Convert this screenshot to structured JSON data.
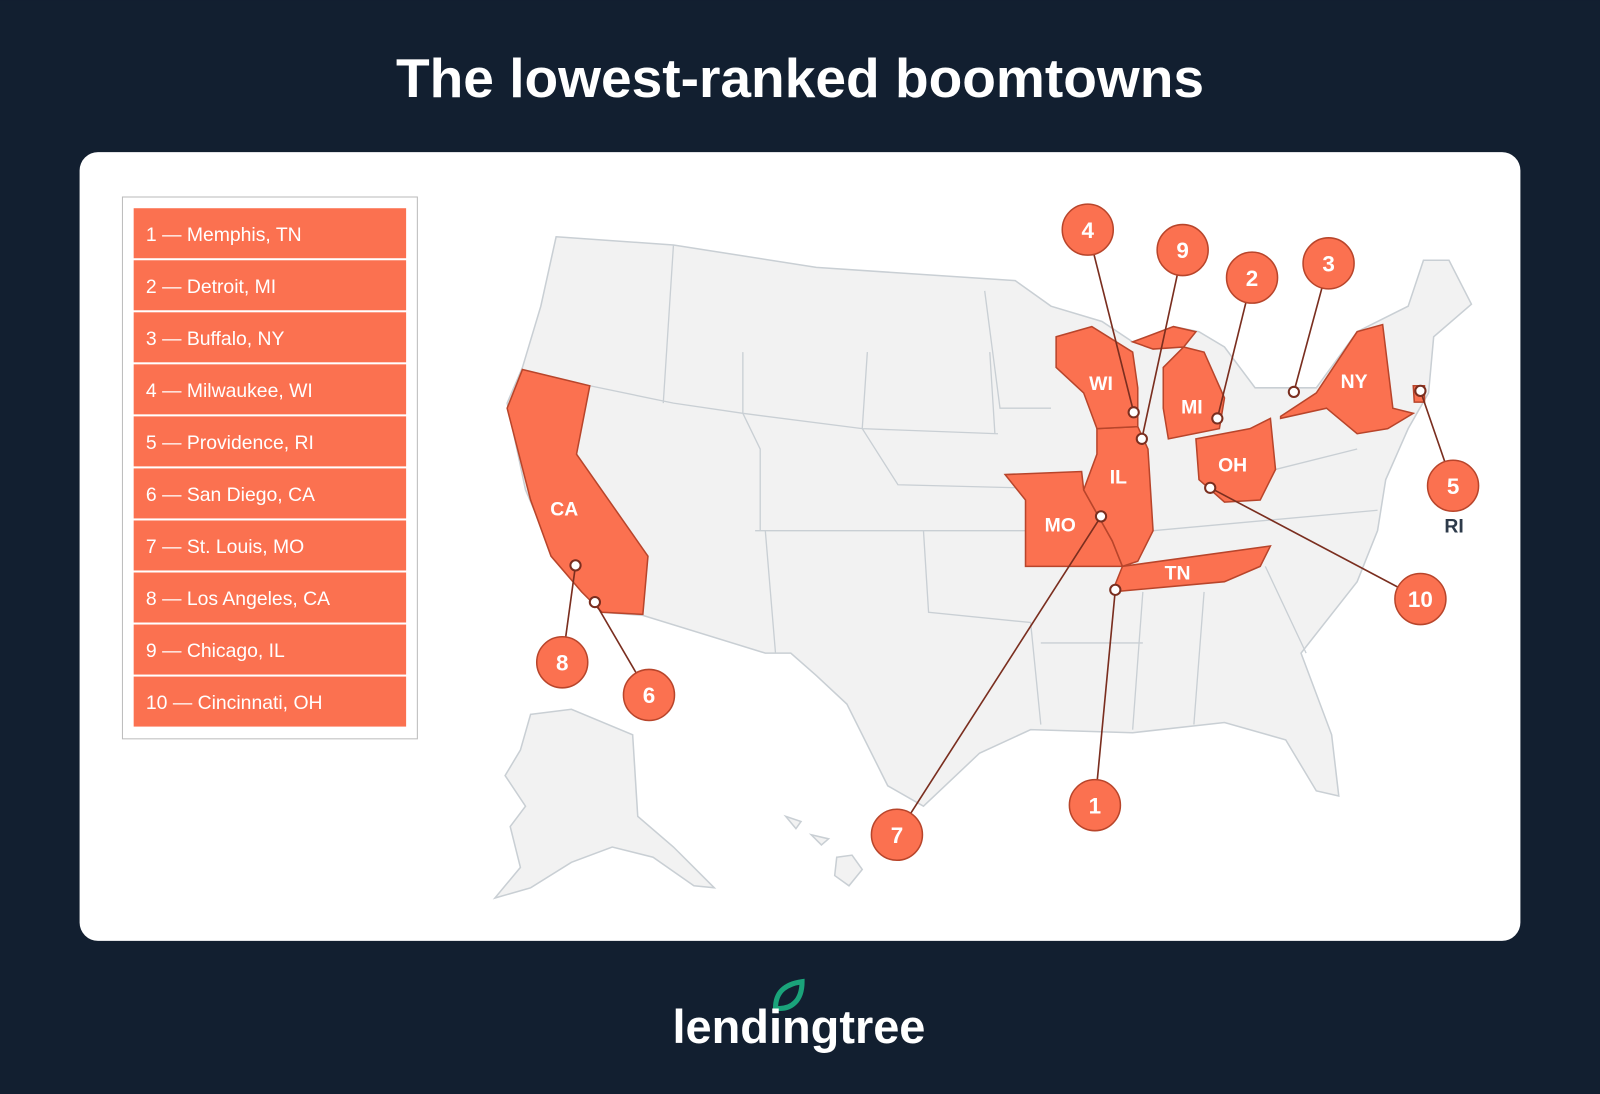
{
  "header": {
    "title": "The lowest-ranked boomtowns"
  },
  "legend": {
    "items": [
      "1 — Memphis, TN",
      "2 — Detroit, MI",
      "3 — Buffalo, NY",
      "4 — Milwaukee, WI",
      "5 — Providence, RI",
      "6 — San Diego, CA",
      "7 — St. Louis, MO",
      "8 — Los Angeles, CA",
      "9 — Chicago, IL",
      "10 — Cincinnati, OH"
    ]
  },
  "map": {
    "state_labels": [
      "CA",
      "MO",
      "IL",
      "WI",
      "MI",
      "OH",
      "NY",
      "TN",
      "RI"
    ],
    "markers": [
      "1",
      "2",
      "3",
      "4",
      "5",
      "6",
      "7",
      "8",
      "9",
      "10"
    ]
  },
  "footer": {
    "brand": "lendingtree"
  }
}
